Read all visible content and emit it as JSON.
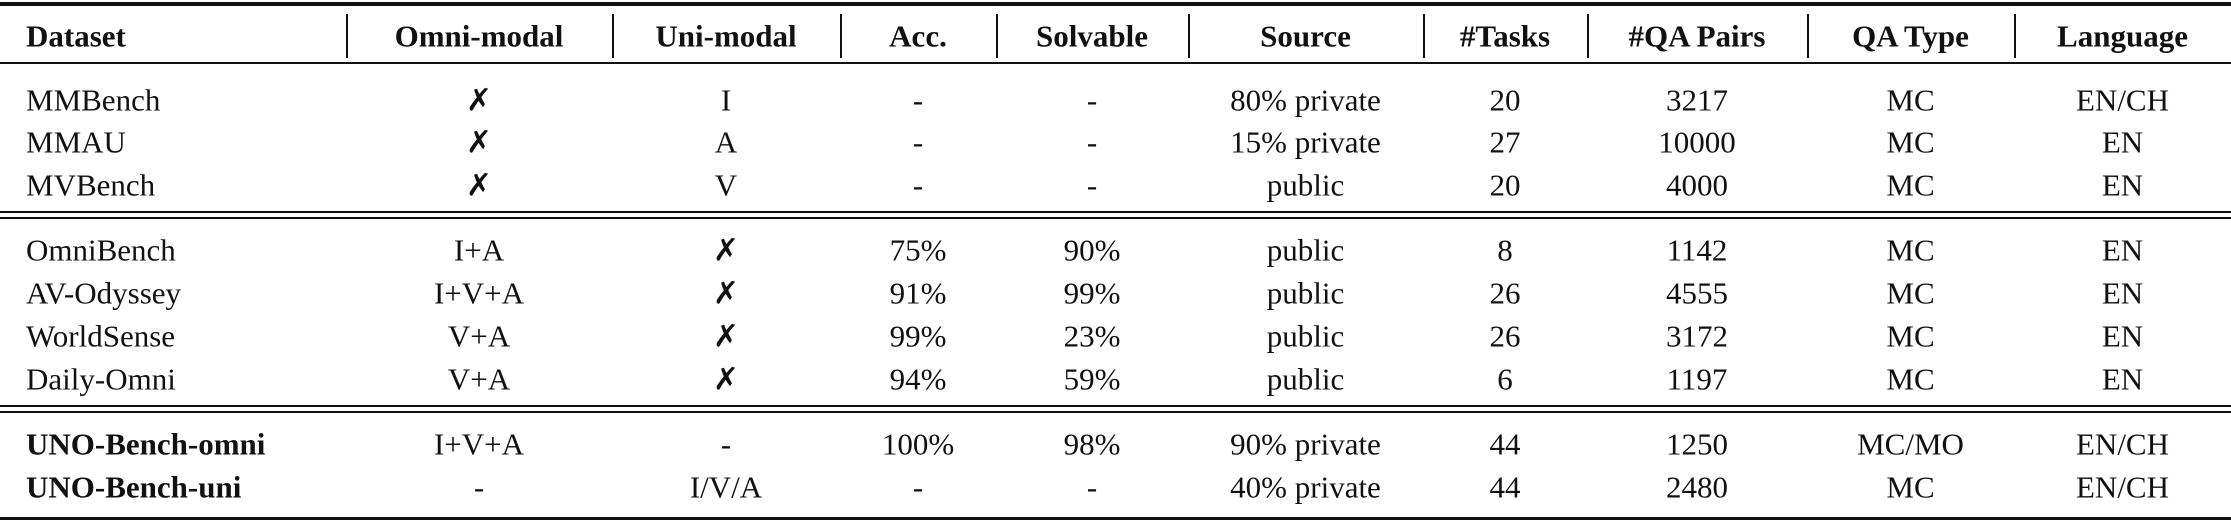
{
  "table": {
    "header": [
      "Dataset",
      "Omni-modal",
      "Uni-modal",
      "Acc.",
      "Solvable",
      "Source",
      "#Tasks",
      "#QA Pairs",
      "QA Type",
      "Language"
    ],
    "groups": [
      [
        [
          "MMBench",
          "✗",
          "I",
          "-",
          "-",
          "80% private",
          "20",
          "3217",
          "MC",
          "EN/CH"
        ],
        [
          "MMAU",
          "✗",
          "A",
          "-",
          "-",
          "15% private",
          "27",
          "10000",
          "MC",
          "EN"
        ],
        [
          "MVBench",
          "✗",
          "V",
          "-",
          "-",
          "public",
          "20",
          "4000",
          "MC",
          "EN"
        ]
      ],
      [
        [
          "OmniBench",
          "I+A",
          "✗",
          "75%",
          "90%",
          "public",
          "8",
          "1142",
          "MC",
          "EN"
        ],
        [
          "AV-Odyssey",
          "I+V+A",
          "✗",
          "91%",
          "99%",
          "public",
          "26",
          "4555",
          "MC",
          "EN"
        ],
        [
          "WorldSense",
          "V+A",
          "✗",
          "99%",
          "23%",
          "public",
          "26",
          "3172",
          "MC",
          "EN"
        ],
        [
          "Daily-Omni",
          "V+A",
          "✗",
          "94%",
          "59%",
          "public",
          "6",
          "1197",
          "MC",
          "EN"
        ]
      ],
      [
        [
          "UNO-Bench-omni",
          "I+V+A",
          "-",
          "100%",
          "98%",
          "90% private",
          "44",
          "1250",
          "MC/MO",
          "EN/CH"
        ],
        [
          "UNO-Bench-uni",
          "-",
          "I/V/A",
          "-",
          "-",
          "40% private",
          "44",
          "2480",
          "MC",
          "EN/CH"
        ]
      ]
    ]
  }
}
